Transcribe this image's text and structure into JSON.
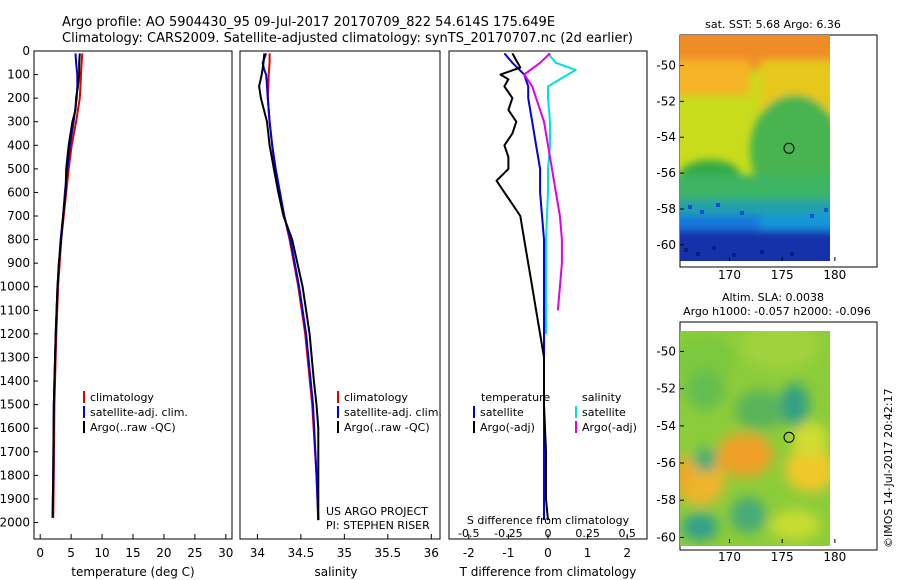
{
  "header": {
    "title_line1": "Argo profile: AO 5904430_95 09-Jul-2017 20170709_822 54.614S 175.649E",
    "title_line2": "Climatology: CARS2009. Satellite-adjusted climatology: synTS_20170707.nc (2d earlier)"
  },
  "colors": {
    "climatology": "#e00000",
    "satellite": "#0000e0",
    "argo": "#000000",
    "salinity_satellite": "#00e0e0",
    "salinity_argo": "#e000e0"
  },
  "chart_data": [
    {
      "type": "line",
      "xlabel": "temperature (deg C)",
      "xlim": [
        -1,
        31
      ],
      "xticks": [
        0,
        5,
        10,
        15,
        20,
        25,
        30
      ],
      "ylim": [
        2070,
        0
      ],
      "yticks": [
        0,
        100,
        200,
        300,
        400,
        500,
        600,
        700,
        800,
        900,
        1000,
        1100,
        1200,
        1300,
        1400,
        1500,
        1600,
        1700,
        1800,
        1900,
        2000
      ],
      "legend": [
        "climatology",
        "satellite-adj. clim.",
        "Argo(..raw -QC)"
      ],
      "series": [
        {
          "name": "climatology",
          "y": [
            10,
            50,
            100,
            150,
            200,
            300,
            400,
            500,
            600,
            700,
            800,
            1000,
            1200,
            1500,
            1800,
            1980
          ],
          "x": [
            6.8,
            6.7,
            6.6,
            6.5,
            6.4,
            5.8,
            5.1,
            4.6,
            4.2,
            3.8,
            3.4,
            2.9,
            2.6,
            2.3,
            2.2,
            2.1
          ]
        },
        {
          "name": "satellite-adj. clim.",
          "y": [
            10,
            50,
            100,
            150,
            200,
            300,
            400,
            500,
            600,
            700,
            800,
            1000,
            1200,
            1500,
            1800,
            1980
          ],
          "x": [
            5.7,
            5.8,
            6.0,
            6.0,
            5.9,
            5.4,
            4.8,
            4.4,
            4.0,
            3.7,
            3.3,
            2.8,
            2.5,
            2.2,
            2.1,
            2.0
          ]
        },
        {
          "name": "Argo(..raw -QC)",
          "y": [
            10,
            50,
            100,
            150,
            200,
            250,
            300,
            400,
            500,
            600,
            700,
            800,
            900,
            1000,
            1200,
            1500,
            1800,
            1980
          ],
          "x": [
            6.4,
            6.3,
            6.3,
            6.1,
            5.8,
            5.7,
            5.2,
            4.6,
            4.2,
            4.1,
            3.7,
            3.4,
            3.0,
            2.8,
            2.5,
            2.2,
            2.1,
            2.0
          ]
        }
      ]
    },
    {
      "type": "line",
      "xlabel": "salinity",
      "xlim": [
        33.8,
        36.1
      ],
      "xticks": [
        34,
        34.5,
        35,
        35.5,
        36
      ],
      "ylim": [
        2070,
        0
      ],
      "legend": [
        "climatology",
        "satellite-adj. clim.",
        "Argo(..raw -QC)"
      ],
      "annotations": [
        "US ARGO PROJECT",
        "PI: STEPHEN RISER"
      ],
      "series": [
        {
          "name": "climatology",
          "y": [
            10,
            50,
            100,
            200,
            300,
            400,
            500,
            600,
            700,
            800,
            1000,
            1200,
            1500,
            1800,
            1990
          ],
          "x": [
            34.14,
            34.14,
            34.13,
            34.12,
            34.14,
            34.17,
            34.2,
            34.25,
            34.31,
            34.37,
            34.47,
            34.55,
            34.63,
            34.68,
            34.7
          ]
        },
        {
          "name": "satellite-adj. clim.",
          "y": [
            10,
            50,
            80,
            100,
            150,
            200,
            300,
            400,
            500,
            600,
            700,
            800,
            1000,
            1200,
            1500,
            1800,
            1990
          ],
          "x": [
            34.1,
            34.06,
            34.08,
            34.1,
            34.11,
            34.12,
            34.14,
            34.17,
            34.21,
            34.26,
            34.31,
            34.38,
            34.48,
            34.56,
            34.64,
            34.68,
            34.7
          ]
        },
        {
          "name": "Argo(..raw -QC)",
          "y": [
            10,
            50,
            100,
            150,
            200,
            300,
            400,
            500,
            600,
            700,
            800,
            1000,
            1200,
            1400,
            1500,
            1600,
            1700,
            1800,
            1900,
            1990
          ],
          "x": [
            34.08,
            34.07,
            34.05,
            34.02,
            34.04,
            34.11,
            34.14,
            34.19,
            34.24,
            34.3,
            34.4,
            34.52,
            34.6,
            34.65,
            34.68,
            34.7,
            34.7,
            34.7,
            34.7,
            34.7
          ]
        }
      ]
    },
    {
      "type": "line",
      "xlabel": "T difference from climatology",
      "xlabel2": "S difference from climatology",
      "xlim": [
        -2.5,
        2.5
      ],
      "xticks": [
        -2,
        -1,
        0,
        1,
        2
      ],
      "xticks2": [
        "-0.5",
        "-0.25",
        "0",
        "0.25",
        "0.5"
      ],
      "ylim": [
        2070,
        0
      ],
      "legend_headers": [
        "temperature",
        "salinity"
      ],
      "legend": [
        "satellite",
        "Argo(-adj)",
        "satellite",
        "Argo(-adj)"
      ],
      "series": [
        {
          "name": "satellite",
          "group": "temperature",
          "y": [
            10,
            50,
            100,
            150,
            200,
            300,
            400,
            500,
            600,
            800,
            1000,
            1200,
            1500,
            1800,
            1990
          ],
          "x": [
            -1.1,
            -0.9,
            -0.6,
            -0.5,
            -0.5,
            -0.4,
            -0.3,
            -0.2,
            -0.2,
            -0.1,
            -0.1,
            -0.1,
            -0.1,
            -0.1,
            -0.1
          ]
        },
        {
          "name": "Argo(-adj)",
          "group": "temperature",
          "y": [
            10,
            40,
            70,
            100,
            120,
            150,
            200,
            250,
            300,
            350,
            400,
            450,
            500,
            550,
            600,
            650,
            700,
            800,
            900,
            1000,
            1100,
            1200,
            1300,
            1500,
            1700,
            1900,
            1990
          ],
          "x": [
            -0.9,
            -0.8,
            -0.7,
            -1.2,
            -1.0,
            -1.1,
            -0.9,
            -1.0,
            -0.8,
            -0.9,
            -1.1,
            -1.0,
            -1.0,
            -1.3,
            -1.1,
            -0.9,
            -0.7,
            -0.6,
            -0.5,
            -0.4,
            -0.3,
            -0.2,
            -0.1,
            -0.1,
            -0.05,
            -0.05,
            0.0
          ]
        },
        {
          "name": "satellite",
          "group": "salinity",
          "y": [
            10,
            50,
            80,
            100,
            150,
            200,
            300,
            400,
            500,
            600,
            800,
            1000,
            1200
          ],
          "x": [
            0.0,
            0.2,
            0.7,
            0.5,
            0.0,
            0.0,
            0.05,
            0.05,
            0.0,
            0.0,
            -0.05,
            -0.05,
            -0.05
          ]
        },
        {
          "name": "Argo(-adj)",
          "group": "salinity",
          "y": [
            10,
            50,
            100,
            150,
            200,
            300,
            400,
            500,
            600,
            700,
            800,
            900,
            1000,
            1100
          ],
          "x": [
            0.05,
            -0.2,
            -0.6,
            -0.4,
            -0.3,
            -0.1,
            0.0,
            0.1,
            0.2,
            0.3,
            0.35,
            0.35,
            0.3,
            0.25
          ]
        }
      ]
    },
    {
      "type": "heatmap",
      "title": "sat. SST: 5.68 Argo: 6.36",
      "xticks": [
        170,
        175,
        180
      ],
      "yticks": [
        -50,
        -52,
        -54,
        -56,
        -58,
        -60
      ],
      "marker": {
        "lon": 175.649,
        "lat": -54.614
      }
    },
    {
      "type": "heatmap",
      "title": "Altim. SLA: 0.0038",
      "subtitle": "Argo h1000: -0.057 h2000: -0.096",
      "xticks": [
        170,
        175,
        180
      ],
      "yticks": [
        -50,
        -52,
        -54,
        -56,
        -58,
        -60
      ],
      "marker": {
        "lon": 175.649,
        "lat": -54.614
      }
    }
  ],
  "credit": "©IMOS 14-Jul-2017 20:42:17"
}
